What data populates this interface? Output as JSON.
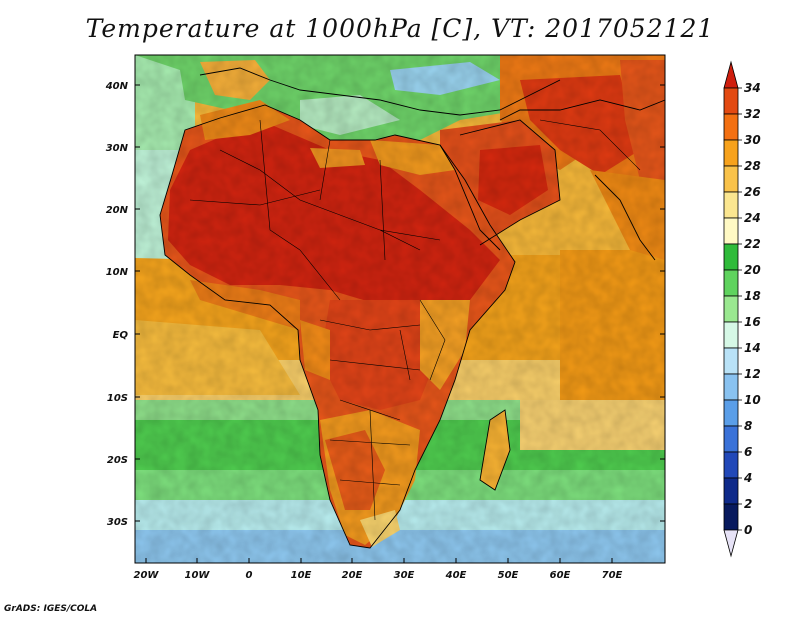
{
  "title": "Temperature at 1000hPa [C], VT: 2017052121",
  "credit": "GrADS: IGES/COLA",
  "map": {
    "lat_labels": [
      "40N",
      "30N",
      "20N",
      "10N",
      "EQ",
      "10S",
      "20S",
      "30S"
    ],
    "lon_labels": [
      "20W",
      "10W",
      "0",
      "10E",
      "20E",
      "30E",
      "40E",
      "50E",
      "60E",
      "70E"
    ]
  },
  "colorbar": {
    "labels": [
      "34",
      "32",
      "30",
      "28",
      "26",
      "24",
      "22",
      "20",
      "18",
      "16",
      "14",
      "12",
      "10",
      "8",
      "6",
      "4",
      "2",
      "0"
    ],
    "colors": [
      "#cf1e0e",
      "#e34a12",
      "#f37012",
      "#f7a21c",
      "#f9c24a",
      "#fbe690",
      "#fff9c4",
      "#2fbb3a",
      "#5fd35e",
      "#9ae890",
      "#d6f8e6",
      "#b9e2f7",
      "#89c2f0",
      "#5a9ee8",
      "#3a72d8",
      "#2148b8",
      "#0f2a8a",
      "#081a5e"
    ]
  }
}
